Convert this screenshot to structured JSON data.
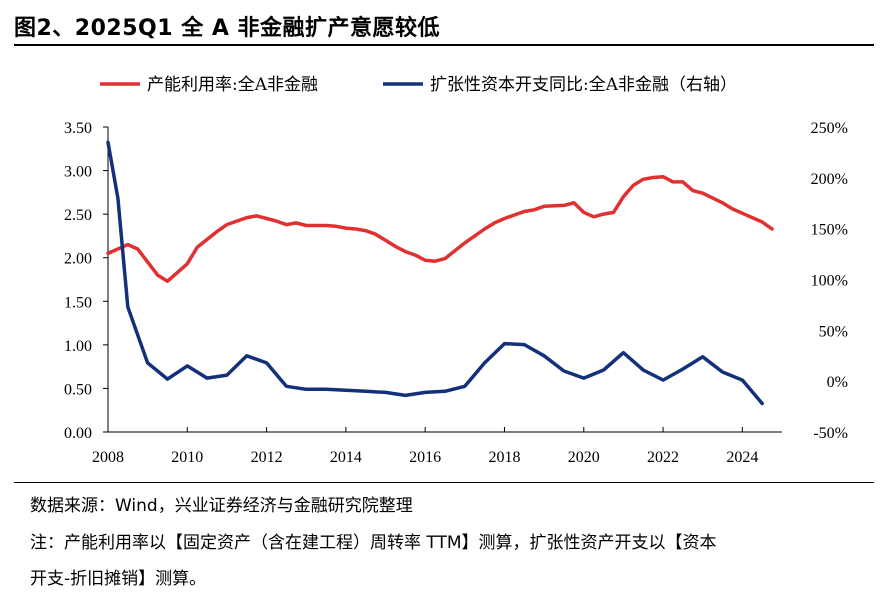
{
  "figure": {
    "title": "图2、2025Q1 全 A 非金融扩产意愿较低"
  },
  "notes": {
    "source": "数据来源：Wind，兴业证券经济与金融研究院整理",
    "note_line1": "注：产能利用率以【固定资产（含在建工程）周转率 TTM】测算，扩张性资产开支以【资本",
    "note_line2": "开支-折旧摊销】测算。"
  },
  "colors": {
    "red": "#e03030",
    "blue": "#13307a"
  },
  "chart_data": {
    "type": "line",
    "legend_placement": "top",
    "grid": false,
    "x_ticks": [
      "2008",
      "2010",
      "2012",
      "2014",
      "2016",
      "2018",
      "2020",
      "2022",
      "2024"
    ],
    "xlim": [
      2008,
      2025
    ],
    "y_left": {
      "lim": [
        0,
        3.5
      ],
      "ticks": [
        "0.00",
        "0.50",
        "1.00",
        "1.50",
        "2.00",
        "2.50",
        "3.00",
        "3.50"
      ]
    },
    "y_right": {
      "lim": [
        -50,
        250
      ],
      "ticks": [
        "-50%",
        "0%",
        "50%",
        "100%",
        "150%",
        "200%",
        "250%"
      ]
    },
    "series": [
      {
        "name": "产能利用率:全A非金融",
        "axis": "left",
        "color": "#e03030",
        "x": [
          2008.0,
          2008.5,
          2008.75,
          2009.25,
          2009.5,
          2010.0,
          2010.25,
          2010.75,
          2011.0,
          2011.5,
          2011.75,
          2012.0,
          2012.25,
          2012.5,
          2012.75,
          2013.0,
          2013.5,
          2013.75,
          2014.0,
          2014.25,
          2014.5,
          2014.75,
          2015.0,
          2015.25,
          2015.5,
          2015.75,
          2016.0,
          2016.25,
          2016.5,
          2016.75,
          2017.0,
          2017.5,
          2017.75,
          2018.0,
          2018.5,
          2018.75,
          2019.0,
          2019.5,
          2019.75,
          2020.0,
          2020.25,
          2020.5,
          2020.75,
          2021.0,
          2021.25,
          2021.5,
          2021.75,
          2022.0,
          2022.25,
          2022.5,
          2022.75,
          2023.0,
          2023.5,
          2023.75,
          2024.0,
          2024.5,
          2024.75
        ],
        "values": [
          2.05,
          2.15,
          2.1,
          1.8,
          1.73,
          1.93,
          2.12,
          2.3,
          2.38,
          2.46,
          2.48,
          2.45,
          2.42,
          2.38,
          2.4,
          2.37,
          2.37,
          2.36,
          2.34,
          2.33,
          2.31,
          2.27,
          2.2,
          2.13,
          2.07,
          2.03,
          1.97,
          1.96,
          1.99,
          2.08,
          2.17,
          2.33,
          2.4,
          2.45,
          2.53,
          2.55,
          2.59,
          2.6,
          2.63,
          2.52,
          2.47,
          2.5,
          2.52,
          2.7,
          2.83,
          2.9,
          2.92,
          2.93,
          2.87,
          2.87,
          2.77,
          2.74,
          2.63,
          2.56,
          2.51,
          2.41,
          2.33
        ]
      },
      {
        "name": "扩张性资本开支同比:全A非金融（右轴）",
        "axis": "right",
        "color": "#13307a",
        "x": [
          2008.0,
          2008.25,
          2008.5,
          2009.0,
          2009.5,
          2010.0,
          2010.5,
          2011.0,
          2011.5,
          2012.0,
          2012.5,
          2013.0,
          2013.5,
          2014.0,
          2014.5,
          2015.0,
          2015.5,
          2016.0,
          2016.5,
          2017.0,
          2017.5,
          2018.0,
          2018.5,
          2019.0,
          2019.5,
          2020.0,
          2020.5,
          2021.0,
          2021.5,
          2022.0,
          2022.5,
          2023.0,
          2023.5,
          2024.0,
          2024.5
        ],
        "values": [
          235,
          180,
          73,
          18,
          2,
          15,
          3,
          6,
          25,
          18,
          -5,
          -8,
          -8,
          -9,
          -10,
          -11,
          -14,
          -11,
          -10,
          -5,
          18,
          37,
          36,
          25,
          10,
          3,
          11,
          28,
          11,
          1,
          12,
          24,
          9,
          1,
          -22
        ]
      }
    ]
  }
}
